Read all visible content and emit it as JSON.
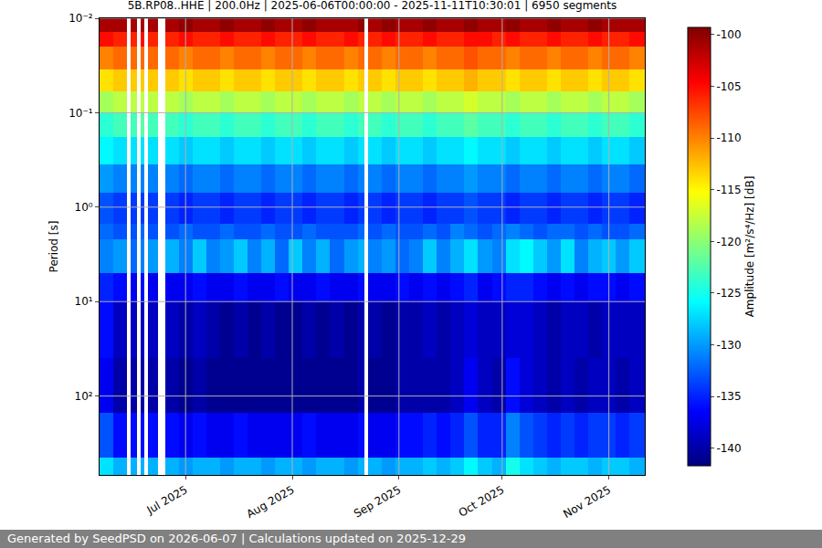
{
  "chart_data": {
    "type": "heatmap",
    "title": "5B.RP08..HHE | 200.0Hz | 2025-06-06T00:00:00 - 2025-11-11T10:30:01 | 6950 segments",
    "y_label": "Period [s]",
    "footer": "Generated by SeedPSD on 2026-06-07 | Calculations updated on 2025-12-29",
    "log": "y",
    "grid": true,
    "xlim": [
      "2025-06-06T00:00:00",
      "2025-11-11T10:30:01"
    ],
    "ylim": [
      684,
      0.01
    ],
    "xticks": [
      {
        "value": "2025-07-01",
        "label": "Jul 2025"
      },
      {
        "value": "2025-08-01",
        "label": "Aug 2025"
      },
      {
        "value": "2025-09-01",
        "label": "Sep 2025"
      },
      {
        "value": "2025-10-01",
        "label": "Oct 2025"
      },
      {
        "value": "2025-11-01",
        "label": "Nov 2025"
      }
    ],
    "yticks": [
      {
        "value": 0.01,
        "label": "10⁻²"
      },
      {
        "value": 0.1,
        "label": "10⁻¹"
      },
      {
        "value": 1,
        "label": "10⁰"
      },
      {
        "value": 10,
        "label": "10¹"
      },
      {
        "value": 100,
        "label": "10²"
      }
    ],
    "x_edges": [
      "2025-06-06",
      "2025-06-10",
      "2025-06-14",
      "2025-06-15",
      "2025-06-17",
      "2025-06-18",
      "2025-06-19",
      "2025-06-20",
      "2025-06-23",
      "2025-06-25",
      "2025-06-29",
      "2025-07-03",
      "2025-07-07",
      "2025-07-11",
      "2025-07-15",
      "2025-07-19",
      "2025-07-23",
      "2025-07-27",
      "2025-07-31",
      "2025-08-04",
      "2025-08-08",
      "2025-08-12",
      "2025-08-16",
      "2025-08-20",
      "2025-08-22",
      "2025-08-23",
      "2025-08-27",
      "2025-08-31",
      "2025-09-04",
      "2025-09-08",
      "2025-09-12",
      "2025-09-16",
      "2025-09-20",
      "2025-09-24",
      "2025-09-28",
      "2025-10-02",
      "2025-10-06",
      "2025-10-10",
      "2025-10-14",
      "2025-10-18",
      "2025-10-22",
      "2025-10-26",
      "2025-10-30",
      "2025-11-03",
      "2025-11-07",
      "2025-11-11T10:30:01"
    ],
    "y_edges": [
      0.01,
      0.014,
      0.02,
      0.035,
      0.06,
      0.1,
      0.18,
      0.35,
      0.7,
      1.5,
      2.2,
      5,
      10,
      40,
      150,
      450,
      684
    ],
    "z": [
      [
        -101,
        -101,
        null,
        -101,
        null,
        -101,
        null,
        -101,
        null,
        -101,
        -100,
        -101,
        -101,
        -100,
        -101,
        -101,
        -100,
        -101,
        -101,
        -100,
        -101,
        -101,
        -101,
        -100,
        null,
        -101,
        -100,
        -101,
        -101,
        -100,
        -101,
        -101,
        -100,
        -101,
        -101,
        -100,
        -101,
        -101,
        -100,
        -101,
        -101,
        -100,
        -101,
        -101,
        -101
      ],
      [
        -105,
        -106,
        null,
        -106,
        null,
        -105,
        null,
        -106,
        null,
        -106,
        -105,
        -106,
        -106,
        -105,
        -106,
        -106,
        -105,
        -106,
        -106,
        -105,
        -106,
        -106,
        -105,
        -106,
        null,
        -106,
        -105,
        -106,
        -106,
        -105,
        -106,
        -106,
        -105,
        -105,
        -106,
        -105,
        -106,
        -106,
        -105,
        -106,
        -106,
        -105,
        -106,
        -106,
        -105
      ],
      [
        -110,
        -109,
        null,
        -109,
        null,
        -109,
        null,
        -109,
        null,
        -109,
        -110,
        -109,
        -109,
        -110,
        -109,
        -109,
        -110,
        -109,
        -109,
        -110,
        -109,
        -109,
        -110,
        -109,
        null,
        -109,
        -110,
        -109,
        -109,
        -110,
        -109,
        -109,
        -108,
        -109,
        -109,
        -110,
        -109,
        -109,
        -110,
        -109,
        -109,
        -110,
        -109,
        -109,
        -110
      ],
      [
        -114,
        -113,
        null,
        -113,
        null,
        -113,
        null,
        -113,
        null,
        -113,
        -114,
        -113,
        -113,
        -114,
        -113,
        -113,
        -114,
        -113,
        -113,
        -114,
        -113,
        -113,
        -114,
        -113,
        null,
        -113,
        -114,
        -113,
        -113,
        -114,
        -113,
        -113,
        -112,
        -113,
        -113,
        -114,
        -113,
        -113,
        -114,
        -113,
        -113,
        -114,
        -113,
        -113,
        -114
      ],
      [
        -119,
        -118,
        null,
        -118,
        null,
        -118,
        null,
        -118,
        null,
        -118,
        -119,
        -118,
        -118,
        -119,
        -118,
        -118,
        -119,
        -118,
        -118,
        -119,
        -118,
        -118,
        -119,
        -118,
        null,
        -118,
        -119,
        -118,
        -118,
        -119,
        -118,
        -118,
        -117,
        -118,
        -118,
        -119,
        -118,
        -118,
        -119,
        -118,
        -118,
        -119,
        -118,
        -118,
        -119
      ],
      [
        -124,
        -123,
        null,
        -123,
        null,
        -122,
        null,
        -123,
        null,
        -123,
        -124,
        -123,
        -123,
        -124,
        -123,
        -123,
        -124,
        -123,
        -123,
        -124,
        -123,
        -123,
        -124,
        -123,
        null,
        -123,
        -124,
        -123,
        -123,
        -124,
        -123,
        -123,
        -122,
        -123,
        -123,
        -124,
        -123,
        -123,
        -124,
        -123,
        -123,
        -124,
        -123,
        -123,
        -124
      ],
      [
        -126,
        -127,
        null,
        -127,
        null,
        -127,
        null,
        -127,
        null,
        -127,
        -128,
        -127,
        -127,
        -128,
        -127,
        -127,
        -128,
        -127,
        -127,
        -128,
        -127,
        -127,
        -128,
        -127,
        null,
        -127,
        -128,
        -127,
        -127,
        -128,
        -127,
        -127,
        -126,
        -127,
        -127,
        -128,
        -127,
        -127,
        -128,
        -127,
        -127,
        -128,
        -127,
        -127,
        -128
      ],
      [
        -130,
        -131,
        null,
        -131,
        null,
        -131,
        null,
        -131,
        null,
        -131,
        -132,
        -131,
        -131,
        -132,
        -131,
        -131,
        -132,
        -131,
        -131,
        -132,
        -131,
        -131,
        -132,
        -131,
        null,
        -131,
        -132,
        -131,
        -131,
        -132,
        -131,
        -131,
        -130,
        -131,
        -131,
        -132,
        -131,
        -131,
        -132,
        -131,
        -131,
        -132,
        -131,
        -131,
        -132
      ],
      [
        -133,
        -134,
        null,
        -134,
        null,
        -134,
        null,
        -134,
        null,
        -134,
        -135,
        -134,
        -134,
        -135,
        -134,
        -134,
        -135,
        -134,
        -134,
        -135,
        -134,
        -134,
        -135,
        -134,
        null,
        -134,
        -135,
        -134,
        -134,
        -135,
        -134,
        -134,
        -133,
        -134,
        -134,
        -135,
        -134,
        -134,
        -135,
        -134,
        -134,
        -135,
        -134,
        -134,
        -135
      ],
      [
        -132,
        -133,
        null,
        -133,
        null,
        -132,
        null,
        -133,
        null,
        -133,
        -132,
        -133,
        -133,
        -132,
        -133,
        -133,
        -132,
        -133,
        -133,
        -132,
        -133,
        -133,
        -133,
        -132,
        null,
        -133,
        -132,
        -133,
        -133,
        -132,
        -133,
        -131,
        -132,
        -133,
        -132,
        -131,
        -132,
        -133,
        -132,
        -132,
        -133,
        -132,
        -133,
        -133,
        -132
      ],
      [
        -131,
        -130,
        null,
        -132,
        null,
        -131,
        null,
        -130,
        null,
        -129,
        -131,
        -128,
        -131,
        -130,
        -128,
        -131,
        -129,
        -132,
        -128,
        -131,
        -129,
        -132,
        -130,
        -129,
        null,
        -131,
        -130,
        -132,
        -131,
        -128,
        -131,
        -129,
        -127,
        -130,
        -131,
        -127,
        -126,
        -128,
        -130,
        -127,
        -131,
        -129,
        -128,
        -130,
        -128
      ],
      [
        -135,
        -136,
        null,
        -137,
        null,
        -136,
        null,
        -137,
        null,
        -137,
        -137,
        -136,
        -137,
        -137,
        -136,
        -137,
        -137,
        -136,
        -137,
        -137,
        -136,
        -137,
        -137,
        -136,
        null,
        -137,
        -137,
        -136,
        -137,
        -136,
        -137,
        -136,
        -135,
        -137,
        -136,
        -135,
        -135,
        -136,
        -137,
        -136,
        -137,
        -136,
        -136,
        -137,
        -136
      ],
      [
        -136,
        -139,
        null,
        -139,
        null,
        -139,
        null,
        -139,
        null,
        -139,
        -140,
        -139,
        -140,
        -141,
        -140,
        -141,
        -140,
        -141,
        -141,
        -140,
        -141,
        -140,
        -141,
        -140,
        null,
        -140,
        -141,
        -140,
        -140,
        -139,
        -140,
        -139,
        -138,
        -139,
        -139,
        -138,
        -138,
        -139,
        -140,
        -139,
        -139,
        -140,
        -139,
        -139,
        -139
      ],
      [
        -137,
        -140,
        null,
        -140,
        null,
        -140,
        null,
        -140,
        null,
        -140,
        -141,
        -140,
        -141,
        -141,
        -141,
        -141,
        -141,
        -141,
        -141,
        -141,
        -141,
        -141,
        -141,
        -140,
        null,
        -141,
        -141,
        -140,
        -140,
        -140,
        -140,
        -139,
        -137,
        -139,
        -140,
        -136,
        -138,
        -139,
        -140,
        -139,
        -140,
        -139,
        -139,
        -140,
        -139
      ],
      [
        -133,
        -136,
        null,
        -136,
        null,
        -136,
        null,
        -136,
        null,
        -136,
        -137,
        -136,
        -137,
        -137,
        -136,
        -137,
        -137,
        -137,
        -137,
        -136,
        -137,
        -137,
        -137,
        -136,
        null,
        -137,
        -137,
        -136,
        -136,
        -135,
        -136,
        -135,
        -133,
        -135,
        -135,
        -131,
        -133,
        -134,
        -135,
        -134,
        -135,
        -134,
        -134,
        -135,
        -134
      ],
      [
        -127,
        -129,
        null,
        -129,
        null,
        -129,
        null,
        -129,
        null,
        -129,
        -130,
        -129,
        -129,
        -130,
        -129,
        -129,
        -130,
        -129,
        -129,
        -130,
        -129,
        -129,
        -130,
        -129,
        null,
        -129,
        -130,
        -129,
        -129,
        -128,
        -129,
        -128,
        -126,
        -128,
        -129,
        -125,
        -127,
        -128,
        -129,
        -128,
        -128,
        -129,
        -128,
        -128,
        -129
      ]
    ],
    "colorbar": {
      "title": "Amplitude [m²/s⁴/Hz] [dB]",
      "zlim": [
        -141.7,
        -99.3
      ],
      "ticks": [
        -100,
        -105,
        -110,
        -115,
        -120,
        -125,
        -130,
        -135,
        -140
      ]
    }
  }
}
